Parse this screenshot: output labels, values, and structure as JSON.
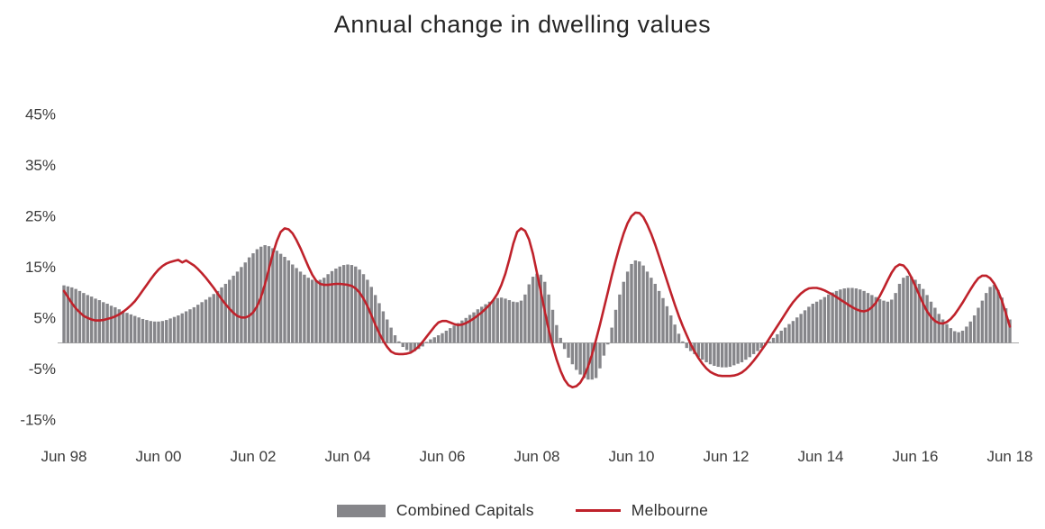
{
  "title": "Annual change in dwelling values",
  "colors": {
    "bars": "#86868a",
    "line": "#bf222b",
    "title_text": "#262626",
    "axis_text": "#3a3a3a",
    "zero_line": "#a8a8a8",
    "background": "#ffffff"
  },
  "legend": {
    "items": [
      {
        "label": "Combined Capitals",
        "type": "bar",
        "color": "#86868a"
      },
      {
        "label": "Melbourne",
        "type": "line",
        "color": "#bf222b"
      }
    ]
  },
  "chart_data": {
    "type": "bar",
    "subtype": "bar-with-line-overlay",
    "title": "Annual change in dwelling values",
    "xlabel": "",
    "ylabel": "",
    "x_unit": "month",
    "x_start": "Jun 1998",
    "x_end": "Jun 2018",
    "x_tick_labels": [
      "Jun 98",
      "Jun 00",
      "Jun 02",
      "Jun 04",
      "Jun 06",
      "Jun 08",
      "Jun 10",
      "Jun 12",
      "Jun 14",
      "Jun 16",
      "Jun 18"
    ],
    "x_tick_month_index": [
      0,
      24,
      48,
      72,
      96,
      120,
      144,
      168,
      192,
      216,
      240
    ],
    "y_tick_values": [
      45,
      35,
      25,
      15,
      5,
      -5,
      -15
    ],
    "y_tick_labels": [
      "45%",
      "35%",
      "25%",
      "15%",
      "5%",
      "-5%",
      "-15%"
    ],
    "ylim": [
      -17,
      50
    ],
    "grid": false,
    "legend_position": "bottom-center",
    "series": [
      {
        "name": "Combined Capitals",
        "type": "bar",
        "color": "#86868a",
        "values": [
          11.3,
          11.1,
          10.9,
          10.6,
          10.2,
          9.8,
          9.4,
          9.1,
          8.7,
          8.4,
          8.0,
          7.7,
          7.3,
          7.0,
          6.6,
          6.3,
          5.9,
          5.6,
          5.3,
          5.0,
          4.7,
          4.5,
          4.3,
          4.2,
          4.2,
          4.3,
          4.5,
          4.8,
          5.1,
          5.4,
          5.8,
          6.2,
          6.6,
          7.0,
          7.5,
          8.0,
          8.5,
          9.0,
          9.6,
          10.2,
          10.9,
          11.6,
          12.4,
          13.2,
          14.0,
          14.9,
          15.8,
          16.8,
          17.6,
          18.4,
          18.9,
          19.2,
          19.0,
          18.6,
          18.1,
          17.5,
          16.9,
          16.2,
          15.4,
          14.7,
          14.0,
          13.4,
          12.8,
          12.4,
          12.3,
          12.4,
          12.8,
          13.5,
          14.1,
          14.6,
          15.0,
          15.3,
          15.4,
          15.3,
          15.0,
          14.4,
          13.5,
          12.4,
          11.0,
          9.4,
          7.8,
          6.2,
          4.6,
          3.0,
          1.5,
          0.3,
          -0.8,
          -1.4,
          -1.7,
          -1.6,
          -1.2,
          -0.7,
          0.2,
          0.7,
          1.1,
          1.5,
          1.9,
          2.4,
          2.9,
          3.4,
          3.9,
          4.4,
          4.9,
          5.5,
          6.0,
          6.6,
          7.1,
          7.6,
          8.1,
          8.5,
          8.8,
          8.9,
          8.7,
          8.4,
          8.1,
          8.0,
          8.3,
          9.5,
          11.5,
          13.0,
          13.6,
          13.4,
          12.0,
          9.5,
          6.5,
          3.5,
          1.0,
          -1.2,
          -2.9,
          -4.2,
          -5.3,
          -6.2,
          -6.9,
          -7.2,
          -7.2,
          -6.9,
          -5.0,
          -2.5,
          -0.3,
          3.0,
          6.5,
          9.5,
          12.0,
          14.0,
          15.5,
          16.2,
          16.0,
          15.2,
          14.0,
          12.8,
          11.6,
          10.2,
          8.8,
          7.2,
          5.4,
          3.6,
          1.8,
          0.3,
          -1.0,
          -1.6,
          -2.2,
          -2.8,
          -3.3,
          -3.8,
          -4.2,
          -4.5,
          -4.7,
          -4.8,
          -4.8,
          -4.7,
          -4.4,
          -4.1,
          -3.8,
          -3.3,
          -2.8,
          -2.2,
          -1.6,
          -1.0,
          -0.4,
          0.3,
          1.0,
          1.7,
          2.4,
          3.0,
          3.7,
          4.3,
          5.0,
          5.7,
          6.4,
          7.1,
          7.7,
          8.1,
          8.5,
          9.0,
          9.5,
          9.9,
          10.2,
          10.5,
          10.7,
          10.8,
          10.8,
          10.7,
          10.5,
          10.2,
          9.8,
          9.4,
          9.0,
          8.6,
          8.3,
          8.1,
          8.5,
          9.8,
          11.6,
          12.8,
          13.2,
          13.0,
          12.4,
          11.6,
          10.6,
          9.4,
          8.1,
          6.9,
          5.7,
          4.6,
          3.7,
          2.9,
          2.3,
          2.1,
          2.4,
          3.2,
          4.2,
          5.4,
          6.9,
          8.3,
          9.8,
          11.0,
          11.4,
          10.4,
          8.9,
          6.8,
          4.6
        ]
      },
      {
        "name": "Melbourne",
        "type": "line",
        "color": "#bf222b",
        "values": [
          10.2,
          9.0,
          7.8,
          6.8,
          6.0,
          5.3,
          4.9,
          4.6,
          4.4,
          4.4,
          4.5,
          4.7,
          4.9,
          5.2,
          5.6,
          6.1,
          6.7,
          7.4,
          8.2,
          9.2,
          10.3,
          11.4,
          12.5,
          13.5,
          14.4,
          15.1,
          15.6,
          15.9,
          16.1,
          16.3,
          15.8,
          16.2,
          15.7,
          15.2,
          14.5,
          13.7,
          12.8,
          11.8,
          10.8,
          9.7,
          8.6,
          7.6,
          6.7,
          5.9,
          5.3,
          5.0,
          5.0,
          5.3,
          6.0,
          7.2,
          9.0,
          11.5,
          14.5,
          17.5,
          20.0,
          21.8,
          22.5,
          22.3,
          21.5,
          20.2,
          18.6,
          16.8,
          15.0,
          13.4,
          12.2,
          11.6,
          11.4,
          11.4,
          11.5,
          11.6,
          11.6,
          11.5,
          11.4,
          11.2,
          10.7,
          9.9,
          8.7,
          7.2,
          5.4,
          3.6,
          1.9,
          0.4,
          -0.8,
          -1.7,
          -2.1,
          -2.2,
          -2.2,
          -2.1,
          -1.9,
          -1.4,
          -0.7,
          0.2,
          1.2,
          2.2,
          3.2,
          4.0,
          4.3,
          4.3,
          4.0,
          3.7,
          3.5,
          3.6,
          3.9,
          4.3,
          4.8,
          5.4,
          6.0,
          6.7,
          7.5,
          8.5,
          9.7,
          11.4,
          13.6,
          16.4,
          19.5,
          21.8,
          22.5,
          22.0,
          20.3,
          17.5,
          13.8,
          10.0,
          6.2,
          2.6,
          -0.6,
          -3.3,
          -5.5,
          -7.2,
          -8.3,
          -8.7,
          -8.5,
          -7.8,
          -6.5,
          -4.6,
          -2.2,
          0.6,
          3.6,
          6.8,
          10.0,
          13.2,
          16.2,
          19.0,
          21.5,
          23.5,
          24.9,
          25.6,
          25.5,
          24.7,
          23.2,
          21.4,
          19.3,
          17.0,
          14.6,
          12.2,
          9.8,
          7.5,
          5.3,
          3.3,
          1.5,
          -0.2,
          -1.7,
          -3.0,
          -4.1,
          -5.0,
          -5.7,
          -6.1,
          -6.4,
          -6.5,
          -6.5,
          -6.5,
          -6.4,
          -6.2,
          -5.8,
          -5.2,
          -4.4,
          -3.5,
          -2.5,
          -1.4,
          -0.3,
          0.9,
          2.1,
          3.3,
          4.5,
          5.7,
          6.9,
          8.0,
          8.9,
          9.7,
          10.3,
          10.7,
          10.8,
          10.8,
          10.6,
          10.3,
          9.9,
          9.5,
          9.0,
          8.5,
          8.0,
          7.5,
          7.0,
          6.6,
          6.3,
          6.2,
          6.4,
          7.0,
          7.9,
          9.2,
          10.7,
          12.3,
          13.8,
          14.9,
          15.4,
          15.2,
          14.3,
          12.9,
          11.2,
          9.4,
          7.7,
          6.2,
          5.1,
          4.3,
          3.9,
          3.8,
          4.1,
          4.7,
          5.6,
          6.7,
          7.9,
          9.2,
          10.5,
          11.7,
          12.7,
          13.2,
          13.2,
          12.7,
          11.7,
          10.2,
          8.2,
          5.8,
          3.2
        ]
      }
    ]
  }
}
